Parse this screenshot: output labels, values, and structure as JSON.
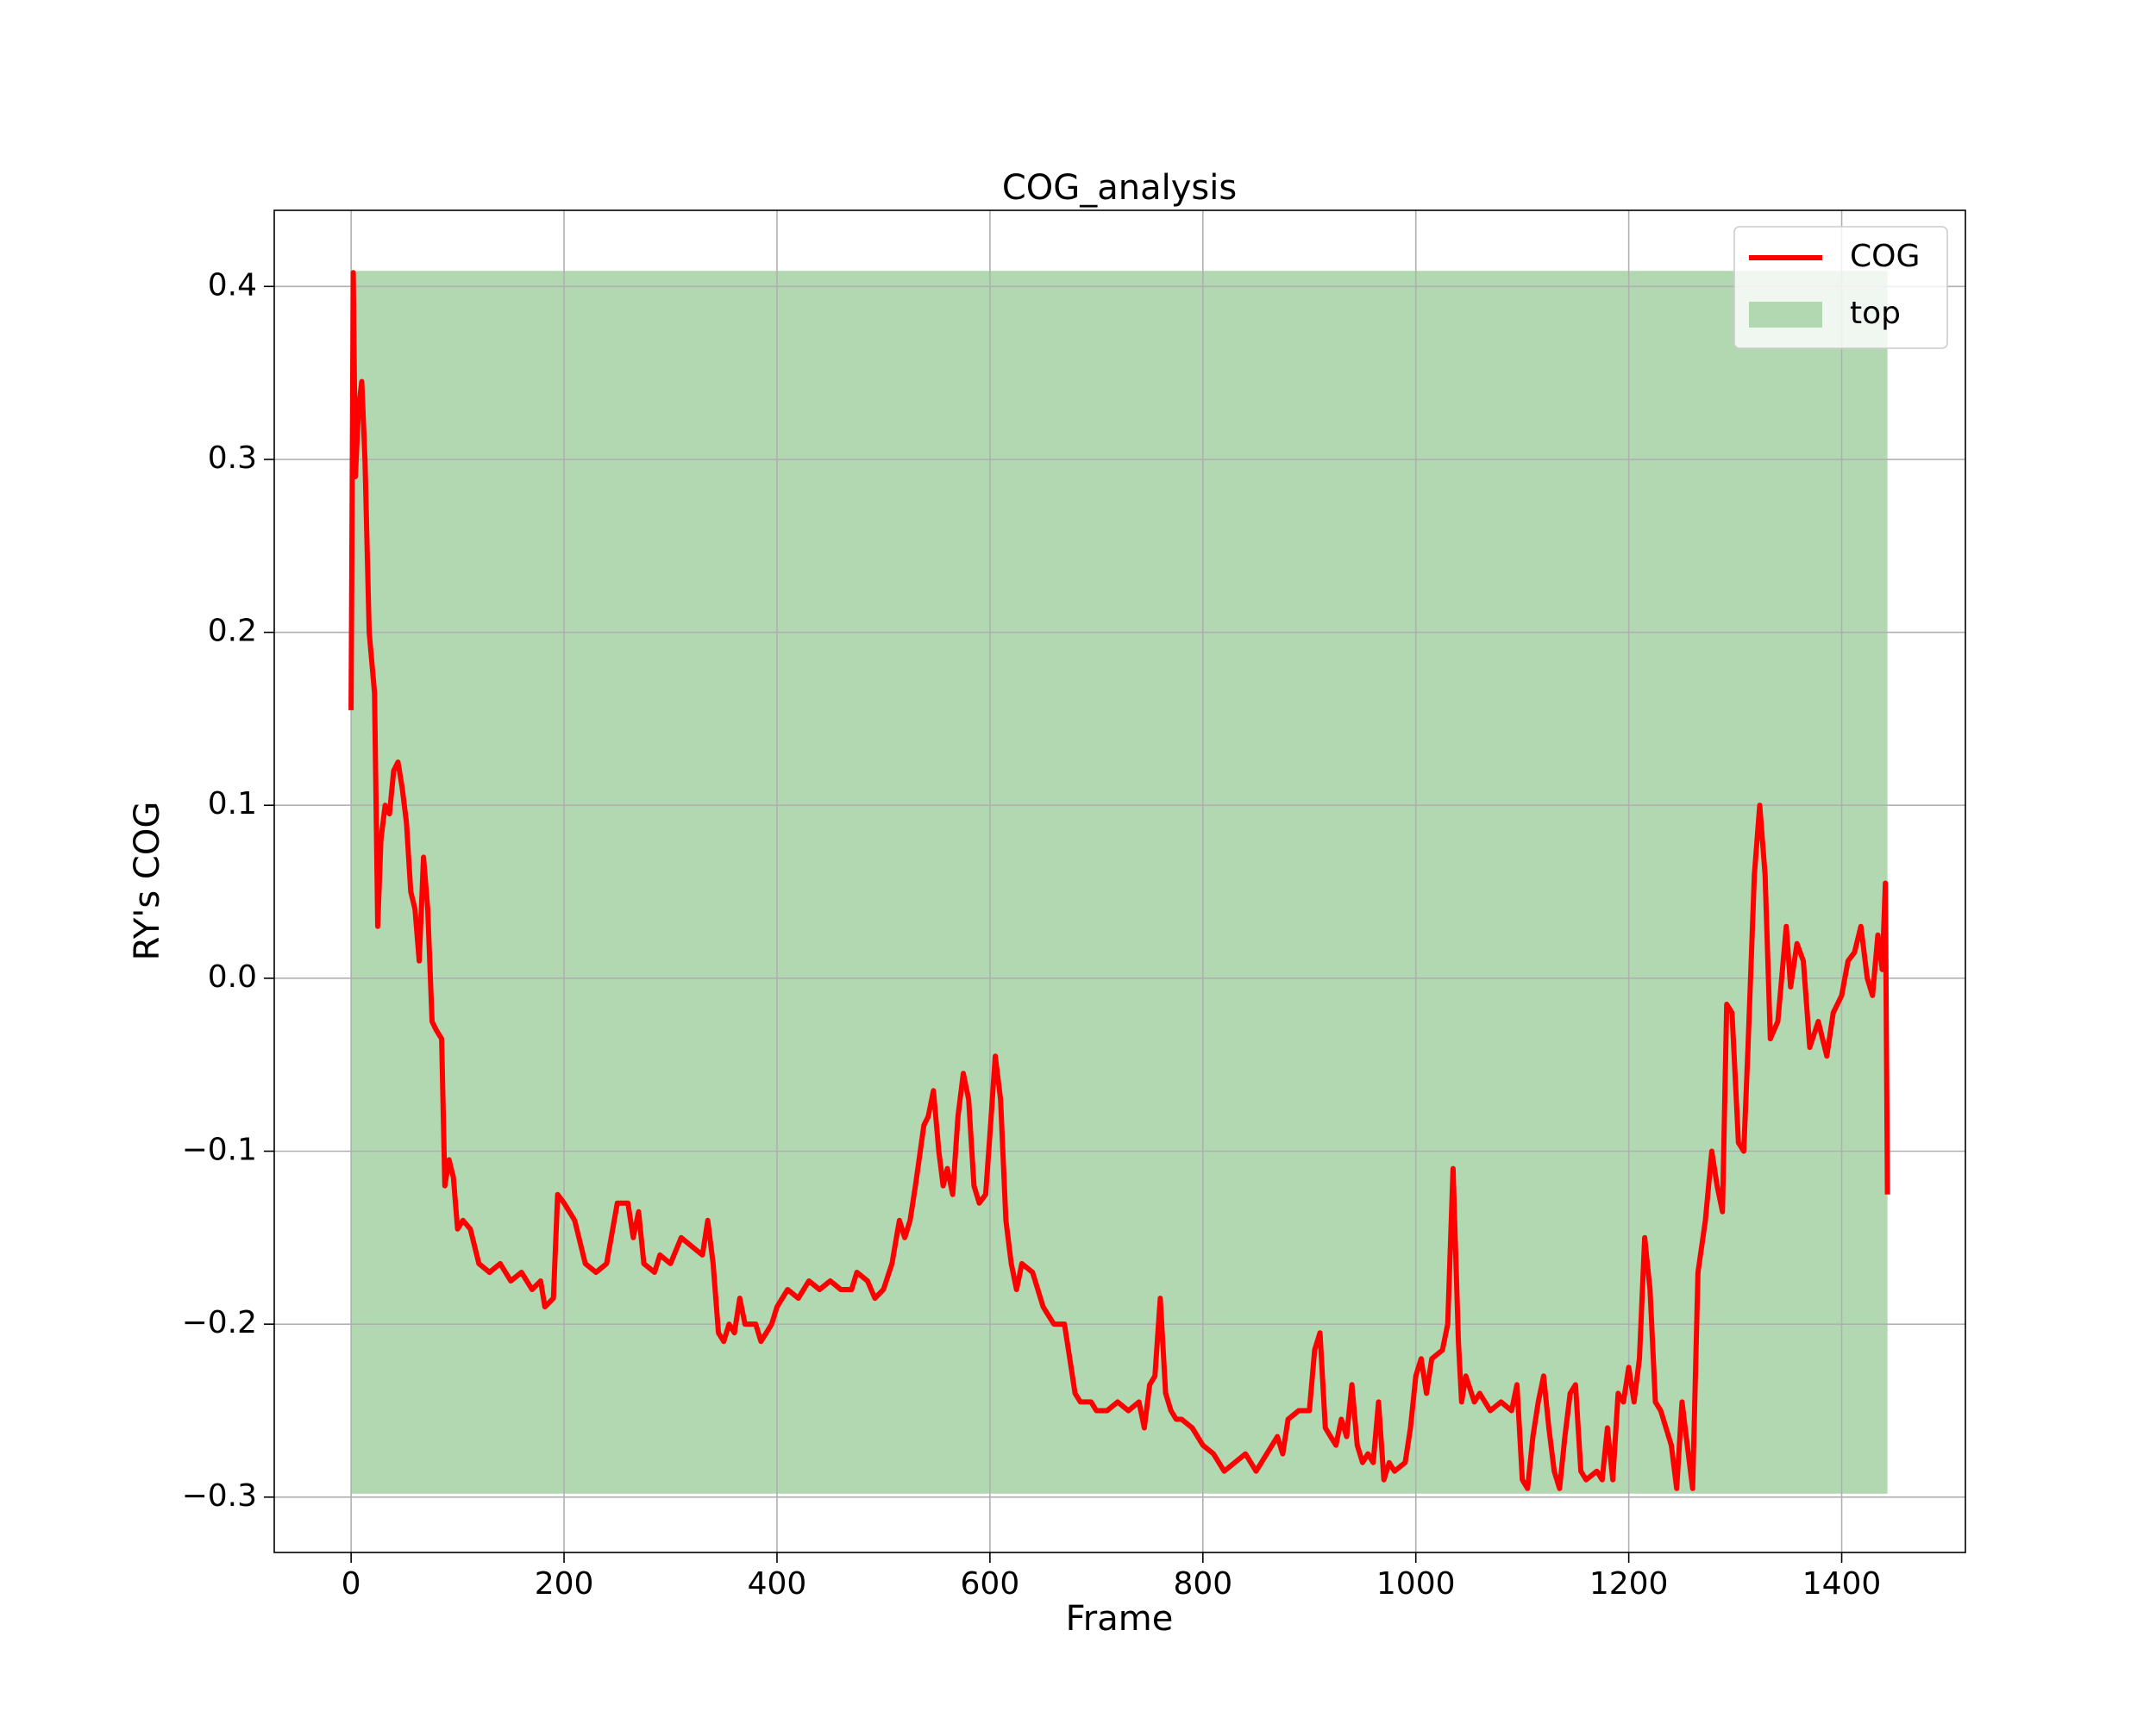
{
  "chart_data": {
    "type": "line",
    "title": "COG_analysis",
    "x_label": "Frame",
    "y_label": "RY's COG",
    "xlim": [
      -72.2,
      1516.2
    ],
    "ylim": [
      -0.332,
      0.444
    ],
    "xticks": [
      0,
      200,
      400,
      600,
      800,
      1000,
      1200,
      1400
    ],
    "yticks": [
      {
        "value": -0.3,
        "label": "−0.3"
      },
      {
        "value": -0.2,
        "label": "−0.2"
      },
      {
        "value": -0.1,
        "label": "−0.1"
      },
      {
        "value": 0.0,
        "label": "0.0"
      },
      0.1,
      0.2,
      0.3,
      0.4
    ],
    "grid": true,
    "legend_loc": "upper right",
    "fill": {
      "name": "top",
      "color": "#b2d8b2",
      "x": [
        0,
        1443
      ],
      "y": [
        -0.298,
        0.409
      ]
    },
    "series": [
      {
        "name": "COG",
        "color": "#ff0000",
        "x": [
          0,
          2,
          4,
          7,
          10,
          13,
          17,
          22,
          25,
          28,
          32,
          36,
          40,
          44,
          48,
          52,
          56,
          60,
          64,
          68,
          72,
          76,
          80,
          85,
          88,
          92,
          96,
          100,
          105,
          112,
          120,
          130,
          140,
          150,
          160,
          170,
          178,
          182,
          190,
          194,
          200,
          210,
          220,
          230,
          240,
          250,
          260,
          265,
          270,
          275,
          285,
          290,
          300,
          310,
          320,
          330,
          335,
          340,
          345,
          350,
          355,
          360,
          365,
          370,
          380,
          385,
          395,
          400,
          410,
          420,
          430,
          440,
          450,
          460,
          470,
          475,
          485,
          492,
          500,
          508,
          515,
          520,
          525,
          530,
          538,
          542,
          547,
          552,
          556,
          560,
          565,
          570,
          575,
          580,
          585,
          590,
          596,
          600,
          605,
          610,
          615,
          620,
          625,
          630,
          640,
          650,
          660,
          670,
          675,
          680,
          685,
          695,
          700,
          710,
          720,
          730,
          740,
          745,
          750,
          755,
          760,
          765,
          770,
          775,
          780,
          790,
          800,
          810,
          820,
          830,
          840,
          850,
          860,
          870,
          875,
          880,
          890,
          900,
          905,
          910,
          915,
          920,
          925,
          930,
          935,
          940,
          945,
          950,
          955,
          960,
          965,
          970,
          975,
          980,
          990,
          995,
          1000,
          1005,
          1010,
          1015,
          1025,
          1030,
          1035,
          1040,
          1043,
          1047,
          1055,
          1060,
          1070,
          1080,
          1090,
          1095,
          1100,
          1105,
          1110,
          1115,
          1120,
          1125,
          1130,
          1135,
          1140,
          1145,
          1150,
          1155,
          1160,
          1170,
          1175,
          1180,
          1185,
          1190,
          1195,
          1200,
          1205,
          1210,
          1215,
          1220,
          1225,
          1230,
          1240,
          1245,
          1250,
          1255,
          1260,
          1265,
          1272,
          1278,
          1283,
          1288,
          1292,
          1297,
          1303,
          1308,
          1312,
          1318,
          1323,
          1328,
          1333,
          1340,
          1348,
          1352,
          1358,
          1364,
          1370,
          1378,
          1386,
          1392,
          1400,
          1406,
          1412,
          1418,
          1424,
          1429,
          1434,
          1438,
          1441,
          1443
        ],
        "values": [
          0.155,
          0.408,
          0.29,
          0.33,
          0.345,
          0.3,
          0.2,
          0.165,
          0.03,
          0.08,
          0.1,
          0.095,
          0.12,
          0.125,
          0.11,
          0.09,
          0.05,
          0.04,
          0.01,
          0.07,
          0.04,
          -0.025,
          -0.03,
          -0.035,
          -0.12,
          -0.105,
          -0.115,
          -0.145,
          -0.14,
          -0.145,
          -0.165,
          -0.17,
          -0.165,
          -0.175,
          -0.17,
          -0.18,
          -0.175,
          -0.19,
          -0.185,
          -0.125,
          -0.13,
          -0.14,
          -0.165,
          -0.17,
          -0.165,
          -0.13,
          -0.13,
          -0.15,
          -0.135,
          -0.165,
          -0.17,
          -0.16,
          -0.165,
          -0.15,
          -0.155,
          -0.16,
          -0.14,
          -0.165,
          -0.205,
          -0.21,
          -0.2,
          -0.205,
          -0.185,
          -0.2,
          -0.2,
          -0.21,
          -0.2,
          -0.19,
          -0.18,
          -0.185,
          -0.175,
          -0.18,
          -0.175,
          -0.18,
          -0.18,
          -0.17,
          -0.175,
          -0.185,
          -0.18,
          -0.165,
          -0.14,
          -0.15,
          -0.14,
          -0.12,
          -0.085,
          -0.08,
          -0.065,
          -0.1,
          -0.12,
          -0.11,
          -0.125,
          -0.08,
          -0.055,
          -0.07,
          -0.12,
          -0.13,
          -0.125,
          -0.09,
          -0.045,
          -0.07,
          -0.14,
          -0.165,
          -0.18,
          -0.165,
          -0.17,
          -0.19,
          -0.2,
          -0.2,
          -0.22,
          -0.24,
          -0.245,
          -0.245,
          -0.25,
          -0.25,
          -0.245,
          -0.25,
          -0.245,
          -0.26,
          -0.235,
          -0.23,
          -0.185,
          -0.24,
          -0.25,
          -0.255,
          -0.255,
          -0.26,
          -0.27,
          -0.275,
          -0.285,
          -0.28,
          -0.275,
          -0.285,
          -0.275,
          -0.265,
          -0.275,
          -0.255,
          -0.25,
          -0.25,
          -0.215,
          -0.205,
          -0.26,
          -0.265,
          -0.27,
          -0.255,
          -0.265,
          -0.235,
          -0.27,
          -0.28,
          -0.275,
          -0.28,
          -0.245,
          -0.29,
          -0.28,
          -0.285,
          -0.28,
          -0.26,
          -0.23,
          -0.22,
          -0.24,
          -0.22,
          -0.215,
          -0.2,
          -0.11,
          -0.21,
          -0.245,
          -0.23,
          -0.245,
          -0.24,
          -0.25,
          -0.245,
          -0.25,
          -0.235,
          -0.29,
          -0.295,
          -0.265,
          -0.245,
          -0.23,
          -0.26,
          -0.285,
          -0.295,
          -0.265,
          -0.24,
          -0.235,
          -0.285,
          -0.29,
          -0.285,
          -0.29,
          -0.26,
          -0.29,
          -0.24,
          -0.245,
          -0.225,
          -0.245,
          -0.22,
          -0.15,
          -0.18,
          -0.245,
          -0.25,
          -0.27,
          -0.295,
          -0.245,
          -0.27,
          -0.295,
          -0.17,
          -0.14,
          -0.1,
          -0.12,
          -0.135,
          -0.015,
          -0.02,
          -0.095,
          -0.1,
          -0.04,
          0.06,
          0.1,
          0.06,
          -0.035,
          -0.025,
          0.03,
          -0.005,
          0.02,
          0.01,
          -0.04,
          -0.025,
          -0.045,
          -0.02,
          -0.01,
          0.01,
          0.015,
          0.03,
          0.0,
          -0.01,
          0.025,
          0.005,
          0.055,
          -0.125
        ]
      }
    ]
  }
}
